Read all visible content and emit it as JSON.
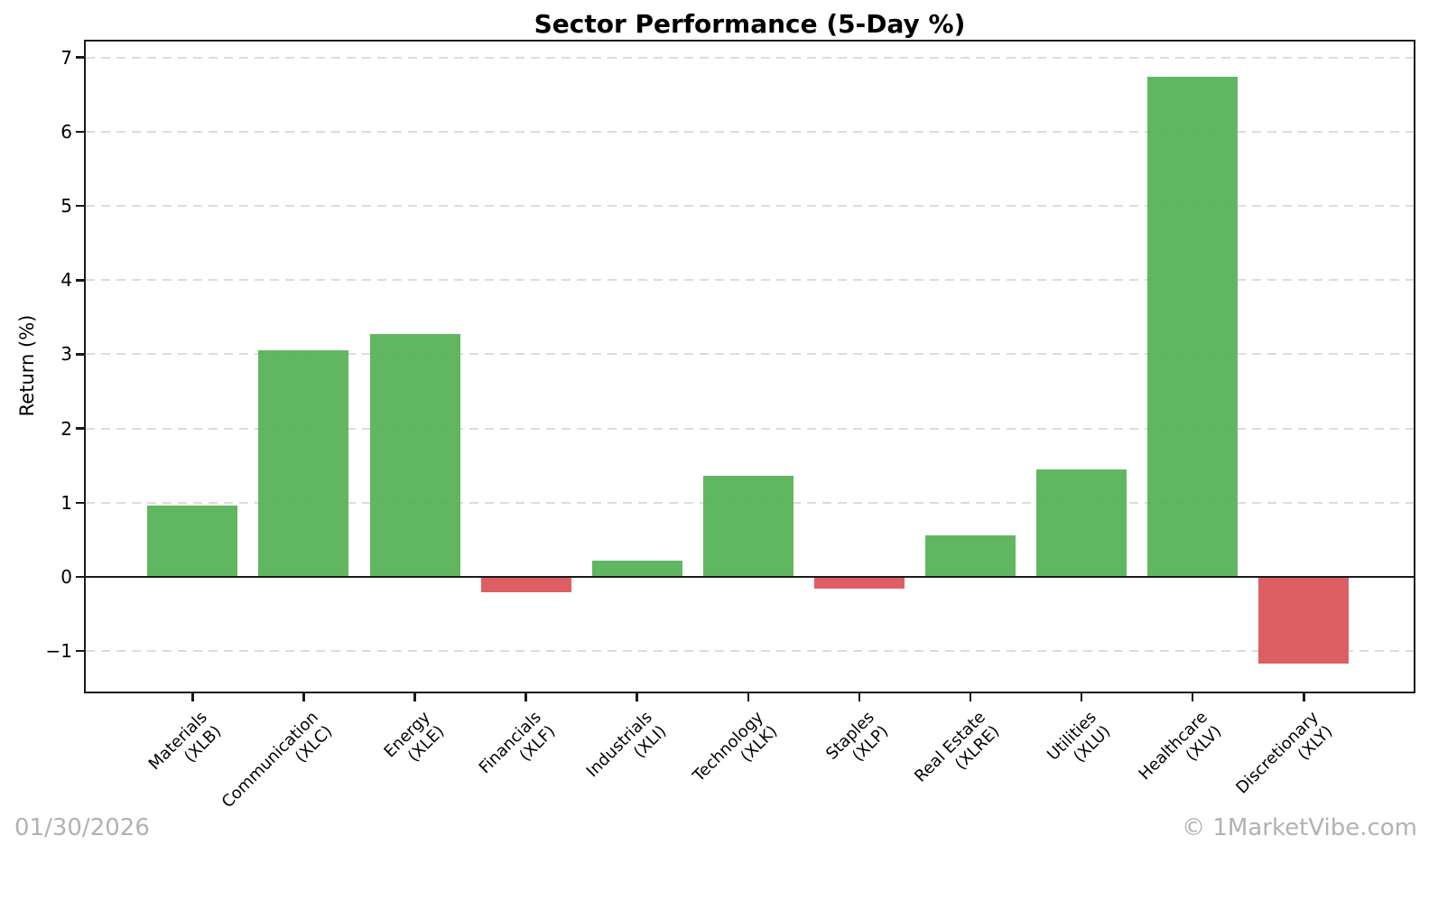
{
  "footer": {
    "date": "01/30/2026",
    "watermark": "© 1MarketVibe.com"
  },
  "chart_data": {
    "type": "bar",
    "title": "Sector Performance (5-Day %)",
    "xlabel": "",
    "ylabel": "Return (%)",
    "categories": [
      {
        "name": "Materials",
        "ticker": "(XLB)"
      },
      {
        "name": "Communication",
        "ticker": "(XLC)"
      },
      {
        "name": "Energy",
        "ticker": "(XLE)"
      },
      {
        "name": "Financials",
        "ticker": "(XLF)"
      },
      {
        "name": "Industrials",
        "ticker": "(XLI)"
      },
      {
        "name": "Technology",
        "ticker": "(XLK)"
      },
      {
        "name": "Staples",
        "ticker": "(XLP)"
      },
      {
        "name": "Real Estate",
        "ticker": "(XLRE)"
      },
      {
        "name": "Utilities",
        "ticker": "(XLU)"
      },
      {
        "name": "Healthcare",
        "ticker": "(XLV)"
      },
      {
        "name": "Discretionary",
        "ticker": "(XLY)"
      }
    ],
    "values": [
      0.96,
      3.06,
      3.27,
      -0.21,
      0.22,
      1.36,
      -0.16,
      0.56,
      1.45,
      6.74,
      -1.17
    ],
    "yticks": [
      -1,
      0,
      1,
      2,
      3,
      4,
      5,
      6,
      7
    ],
    "ylim": [
      -1.57,
      7.24
    ],
    "grid": "horizontal-dashed",
    "legend": "none",
    "zero_line": true,
    "positive_color": "#55b255",
    "negative_color": "#da5358",
    "axis_color": "#1a1a1a",
    "grid_color": "#dcdcdc",
    "footer_text_color": "#b2b2b2"
  }
}
